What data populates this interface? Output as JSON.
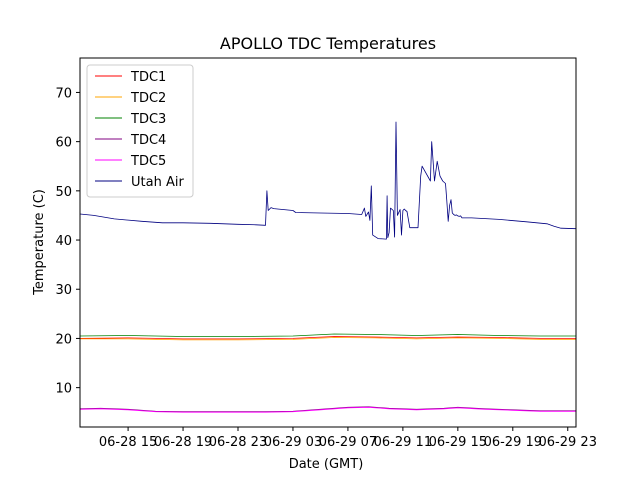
{
  "chart_data": {
    "type": "line",
    "title": "APOLLO TDC Temperatures",
    "xlabel": "Date (GMT)",
    "ylabel": "Temperature (C)",
    "xlim": [
      11.5,
      47.6
    ],
    "ylim": [
      2,
      77
    ],
    "x_unit": "hours since 06-28 00:00 GMT",
    "x_ticks": [
      {
        "value": 15,
        "label": "06-28 15"
      },
      {
        "value": 19,
        "label": "06-28 19"
      },
      {
        "value": 23,
        "label": "06-28 23"
      },
      {
        "value": 27,
        "label": "06-29 03"
      },
      {
        "value": 31,
        "label": "06-29 07"
      },
      {
        "value": 35,
        "label": "06-29 11"
      },
      {
        "value": 39,
        "label": "06-29 15"
      },
      {
        "value": 43,
        "label": "06-29 19"
      },
      {
        "value": 47,
        "label": "06-29 23"
      }
    ],
    "y_ticks": [
      {
        "value": 10,
        "label": "10"
      },
      {
        "value": 20,
        "label": "20"
      },
      {
        "value": 30,
        "label": "30"
      },
      {
        "value": 40,
        "label": "40"
      },
      {
        "value": 50,
        "label": "50"
      },
      {
        "value": 60,
        "label": "60"
      },
      {
        "value": 70,
        "label": "70"
      }
    ],
    "legend_position": "top-left",
    "series": [
      {
        "name": "TDC1",
        "color": "#ff0000",
        "x": [
          11.5,
          15,
          19,
          23,
          27,
          30,
          33,
          36,
          39,
          42,
          45,
          47.6
        ],
        "y": [
          20.0,
          20.1,
          19.9,
          19.9,
          20.0,
          20.4,
          20.3,
          20.1,
          20.3,
          20.2,
          20.0,
          20.0
        ]
      },
      {
        "name": "TDC2",
        "color": "#ffa500",
        "x": [
          11.5,
          15,
          19,
          23,
          27,
          30,
          33,
          36,
          39,
          42,
          45,
          47.6
        ],
        "y": [
          19.9,
          19.9,
          19.7,
          19.7,
          19.8,
          20.2,
          20.1,
          19.9,
          20.1,
          20.0,
          19.8,
          19.8
        ]
      },
      {
        "name": "TDC3",
        "color": "#008000",
        "x": [
          11.5,
          15,
          19,
          23,
          27,
          30,
          33,
          36,
          39,
          42,
          45,
          47.6
        ],
        "y": [
          20.5,
          20.6,
          20.4,
          20.4,
          20.5,
          20.9,
          20.8,
          20.6,
          20.8,
          20.6,
          20.5,
          20.5
        ]
      },
      {
        "name": "TDC4",
        "color": "#800080",
        "x": [
          11.5,
          13,
          15,
          17,
          19,
          21,
          23,
          25,
          27,
          29,
          31,
          32.5,
          34,
          36,
          38,
          39,
          41,
          43,
          45,
          47,
          47.6
        ],
        "y": [
          5.7,
          5.8,
          5.6,
          5.2,
          5.1,
          5.1,
          5.1,
          5.1,
          5.2,
          5.6,
          6.0,
          6.1,
          5.8,
          5.6,
          5.8,
          6.0,
          5.7,
          5.5,
          5.3,
          5.3,
          5.3
        ]
      },
      {
        "name": "TDC5",
        "color": "#ff00ff",
        "x": [
          11.5,
          13,
          15,
          17,
          19,
          21,
          23,
          25,
          27,
          29,
          31,
          32.5,
          34,
          36,
          38,
          39,
          41,
          43,
          45,
          47,
          47.6
        ],
        "y": [
          5.6,
          5.7,
          5.5,
          5.1,
          5.0,
          5.0,
          5.0,
          5.0,
          5.1,
          5.5,
          5.9,
          6.0,
          5.7,
          5.5,
          5.7,
          5.9,
          5.6,
          5.4,
          5.2,
          5.2,
          5.2
        ]
      },
      {
        "name": "Utah Air",
        "color": "#000080",
        "x": [
          11.5,
          12.5,
          14,
          16,
          17.5,
          19,
          21,
          23,
          24.3,
          25.0,
          25.1,
          25.2,
          25.4,
          25.6,
          27.0,
          27.2,
          29,
          31,
          32.0,
          32.2,
          32.3,
          32.5,
          32.6,
          32.7,
          32.8,
          33.2,
          33.8,
          33.85,
          33.9,
          34.0,
          34.1,
          34.3,
          34.4,
          34.5,
          34.6,
          34.8,
          34.9,
          35.0,
          35.1,
          35.2,
          35.3,
          35.5,
          36.1,
          36.3,
          36.4,
          37.0,
          37.1,
          37.3,
          37.5,
          37.7,
          37.9,
          38.1,
          38.2,
          38.3,
          38.4,
          38.5,
          38.6,
          38.7,
          38.8,
          38.9,
          39.0,
          39.1,
          39.2,
          39.3,
          40,
          42,
          44,
          45.5,
          46,
          46.5,
          47.6
        ],
        "y": [
          45.3,
          45.0,
          44.3,
          43.8,
          43.5,
          43.5,
          43.4,
          43.2,
          43.1,
          43.0,
          50.0,
          46.0,
          46.6,
          46.4,
          46.0,
          45.6,
          45.5,
          45.4,
          45.2,
          46.5,
          44.8,
          45.7,
          44.0,
          51.0,
          41.0,
          40.3,
          40.2,
          49.0,
          40.5,
          41.5,
          46.5,
          46.0,
          40.6,
          64.0,
          45.0,
          46.2,
          41.0,
          46.0,
          46.3,
          46.0,
          45.8,
          42.5,
          42.5,
          53.0,
          55.0,
          52.0,
          60.0,
          52.0,
          56.0,
          53.0,
          52.0,
          51.5,
          48.0,
          43.8,
          47.0,
          48.2,
          45.5,
          45.2,
          45.0,
          45.1,
          44.9,
          44.8,
          44.9,
          44.5,
          44.5,
          44.2,
          43.7,
          43.3,
          42.8,
          42.4,
          42.3
        ]
      }
    ]
  }
}
